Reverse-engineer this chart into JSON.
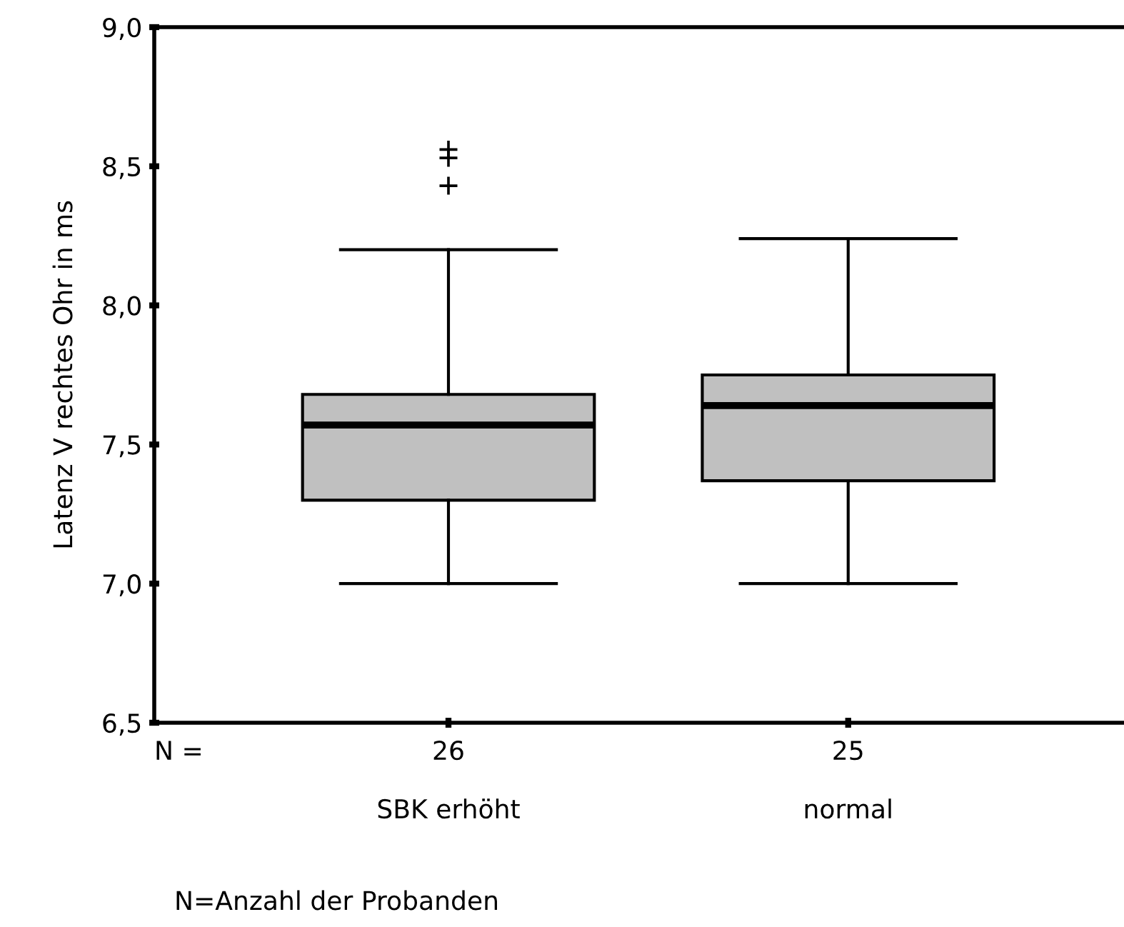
{
  "chart_data": {
    "type": "box",
    "ylabel": "Latenz V rechtes Ohr in ms",
    "categories": [
      "SBK erhöht",
      "normal"
    ],
    "boxes": [
      {
        "low": 7.0,
        "q1": 7.3,
        "median": 7.57,
        "q3": 7.68,
        "high": 8.2,
        "outliers": [
          8.56,
          8.53,
          8.43
        ]
      },
      {
        "low": 7.0,
        "q1": 7.37,
        "median": 7.64,
        "q3": 7.75,
        "high": 8.24
      }
    ],
    "color": "#c0c0c0",
    "ylim": [
      6.5,
      9.0
    ],
    "yticks": [
      {
        "value": 6.5,
        "label": "6,5"
      },
      {
        "value": 7.0,
        "label": "7,0"
      },
      {
        "value": 7.5,
        "label": "7,5"
      },
      {
        "value": 8.0,
        "label": "8,0"
      },
      {
        "value": 8.5,
        "label": "8,5"
      },
      {
        "value": 9.0,
        "label": "9,0"
      }
    ],
    "marker": "cross",
    "grid": false,
    "annotations": [
      "N =",
      {
        "text": "26",
        "x": "SBK erhöht"
      },
      {
        "text": "25",
        "x": "normal"
      },
      "N=Anzahl der Probanden"
    ]
  }
}
